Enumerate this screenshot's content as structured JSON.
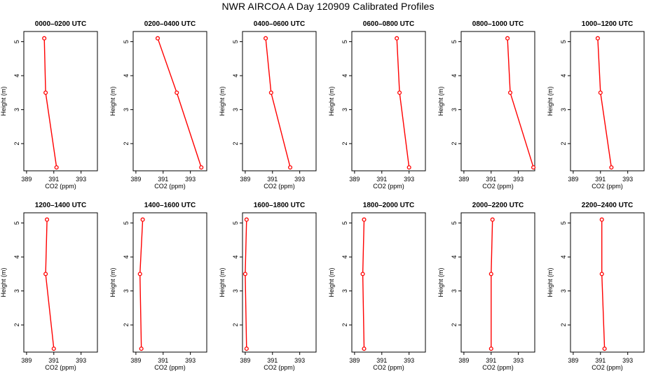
{
  "figure": {
    "title": "NWR AIRCOA A  Day 120909  Calibrated Profiles"
  },
  "chart_data": [
    {
      "type": "line",
      "title": "0000–0200 UTC",
      "xlabel": "CO2 (ppm)",
      "ylabel": "Height (m)",
      "xlim": [
        388.8,
        394.2
      ],
      "ylim": [
        1.2,
        5.3
      ],
      "xticks": [
        389,
        391,
        393
      ],
      "yticks": [
        2,
        3,
        4,
        5
      ],
      "grid": false,
      "color": "#ff0000",
      "series": [
        {
          "x": [
            391.2,
            390.4,
            390.3
          ],
          "y": [
            1.3,
            3.5,
            5.1
          ]
        }
      ]
    },
    {
      "type": "line",
      "title": "0200–0400 UTC",
      "xlabel": "CO2 (ppm)",
      "ylabel": "Height (m)",
      "xlim": [
        388.8,
        394.2
      ],
      "ylim": [
        1.2,
        5.3
      ],
      "xticks": [
        389,
        391,
        393
      ],
      "yticks": [
        2,
        3,
        4,
        5
      ],
      "grid": false,
      "color": "#ff0000",
      "series": [
        {
          "x": [
            393.8,
            392.0,
            390.6
          ],
          "y": [
            1.3,
            3.5,
            5.1
          ]
        }
      ]
    },
    {
      "type": "line",
      "title": "0400–0600 UTC",
      "xlabel": "CO2 (ppm)",
      "ylabel": "Height (m)",
      "xlim": [
        388.8,
        394.2
      ],
      "ylim": [
        1.2,
        5.3
      ],
      "xticks": [
        389,
        391,
        393
      ],
      "yticks": [
        2,
        3,
        4,
        5
      ],
      "grid": false,
      "color": "#ff0000",
      "series": [
        {
          "x": [
            392.3,
            390.9,
            390.5
          ],
          "y": [
            1.3,
            3.5,
            5.1
          ]
        }
      ]
    },
    {
      "type": "line",
      "title": "0600–0800 UTC",
      "xlabel": "CO2 (ppm)",
      "ylabel": "Height (m)",
      "xlim": [
        388.8,
        394.2
      ],
      "ylim": [
        1.2,
        5.3
      ],
      "xticks": [
        389,
        391,
        393
      ],
      "yticks": [
        2,
        3,
        4,
        5
      ],
      "grid": false,
      "color": "#ff0000",
      "series": [
        {
          "x": [
            393.0,
            392.3,
            392.1
          ],
          "y": [
            1.3,
            3.5,
            5.1
          ]
        }
      ]
    },
    {
      "type": "line",
      "title": "0800–1000 UTC",
      "xlabel": "CO2 (ppm)",
      "ylabel": "Height (m)",
      "xlim": [
        388.8,
        394.2
      ],
      "ylim": [
        1.2,
        5.3
      ],
      "xticks": [
        389,
        391,
        393
      ],
      "yticks": [
        2,
        3,
        4,
        5
      ],
      "grid": false,
      "color": "#ff0000",
      "series": [
        {
          "x": [
            394.1,
            392.4,
            392.2
          ],
          "y": [
            1.3,
            3.5,
            5.1
          ]
        }
      ]
    },
    {
      "type": "line",
      "title": "1000–1200 UTC",
      "xlabel": "CO2 (ppm)",
      "ylabel": "Height (m)",
      "xlim": [
        388.8,
        394.2
      ],
      "ylim": [
        1.2,
        5.3
      ],
      "xticks": [
        389,
        391,
        393
      ],
      "yticks": [
        2,
        3,
        4,
        5
      ],
      "grid": false,
      "color": "#ff0000",
      "series": [
        {
          "x": [
            391.8,
            391.0,
            390.8
          ],
          "y": [
            1.3,
            3.5,
            5.1
          ]
        }
      ]
    },
    {
      "type": "line",
      "title": "1200–1400 UTC",
      "xlabel": "CO2 (ppm)",
      "ylabel": "Height (m)",
      "xlim": [
        388.8,
        394.2
      ],
      "ylim": [
        1.2,
        5.3
      ],
      "xticks": [
        389,
        391,
        393
      ],
      "yticks": [
        2,
        3,
        4,
        5
      ],
      "grid": false,
      "color": "#ff0000",
      "series": [
        {
          "x": [
            391.0,
            390.4,
            390.5
          ],
          "y": [
            1.3,
            3.5,
            5.1
          ]
        }
      ]
    },
    {
      "type": "line",
      "title": "1400–1600 UTC",
      "xlabel": "CO2 (ppm)",
      "ylabel": "Height (m)",
      "xlim": [
        388.8,
        394.2
      ],
      "ylim": [
        1.2,
        5.3
      ],
      "xticks": [
        389,
        391,
        393
      ],
      "yticks": [
        2,
        3,
        4,
        5
      ],
      "grid": false,
      "color": "#ff0000",
      "series": [
        {
          "x": [
            389.4,
            389.3,
            389.5
          ],
          "y": [
            1.3,
            3.5,
            5.1
          ]
        }
      ]
    },
    {
      "type": "line",
      "title": "1600–1800 UTC",
      "xlabel": "CO2 (ppm)",
      "ylabel": "Height (m)",
      "xlim": [
        388.8,
        394.2
      ],
      "ylim": [
        1.2,
        5.3
      ],
      "xticks": [
        389,
        391,
        393
      ],
      "yticks": [
        2,
        3,
        4,
        5
      ],
      "grid": false,
      "color": "#ff0000",
      "series": [
        {
          "x": [
            389.1,
            389.0,
            389.1
          ],
          "y": [
            1.3,
            3.5,
            5.1
          ]
        }
      ]
    },
    {
      "type": "line",
      "title": "1800–2000 UTC",
      "xlabel": "CO2 (ppm)",
      "ylabel": "Height (m)",
      "xlim": [
        388.8,
        394.2
      ],
      "ylim": [
        1.2,
        5.3
      ],
      "xticks": [
        389,
        391,
        393
      ],
      "yticks": [
        2,
        3,
        4,
        5
      ],
      "grid": false,
      "color": "#ff0000",
      "series": [
        {
          "x": [
            389.7,
            389.6,
            389.7
          ],
          "y": [
            1.3,
            3.5,
            5.1
          ]
        }
      ]
    },
    {
      "type": "line",
      "title": "2000–2200 UTC",
      "xlabel": "CO2 (ppm)",
      "ylabel": "Height (m)",
      "xlim": [
        388.8,
        394.2
      ],
      "ylim": [
        1.2,
        5.3
      ],
      "xticks": [
        389,
        391,
        393
      ],
      "yticks": [
        2,
        3,
        4,
        5
      ],
      "grid": false,
      "color": "#ff0000",
      "series": [
        {
          "x": [
            391.0,
            391.0,
            391.1
          ],
          "y": [
            1.3,
            3.5,
            5.1
          ]
        }
      ]
    },
    {
      "type": "line",
      "title": "2200–2400 UTC",
      "xlabel": "CO2 (ppm)",
      "ylabel": "Height (m)",
      "xlim": [
        388.8,
        394.2
      ],
      "ylim": [
        1.2,
        5.3
      ],
      "xticks": [
        389,
        391,
        393
      ],
      "yticks": [
        2,
        3,
        4,
        5
      ],
      "grid": false,
      "color": "#ff0000",
      "series": [
        {
          "x": [
            391.3,
            391.1,
            391.1
          ],
          "y": [
            1.3,
            3.5,
            5.1
          ]
        }
      ]
    }
  ]
}
